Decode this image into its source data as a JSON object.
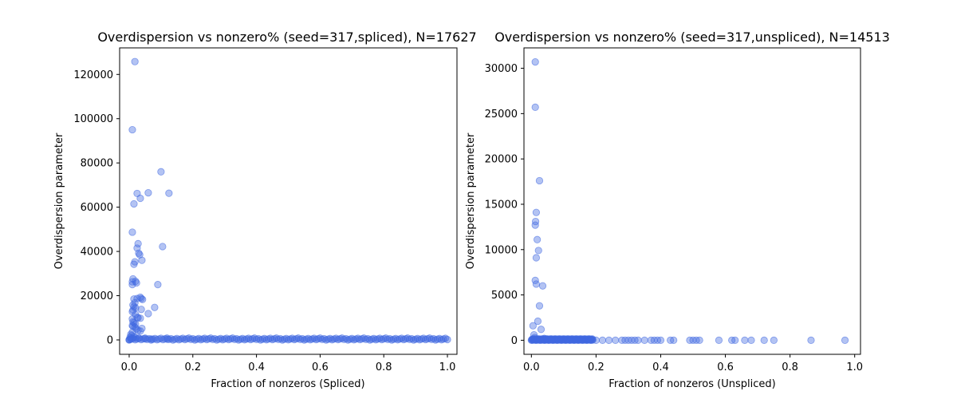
{
  "chart_data": [
    {
      "type": "scatter",
      "title": "Overdispersion vs nonzero% (seed=317,spliced), N=17627",
      "xlabel": "Fraction of nonzeros (Spliced)",
      "ylabel": "Overdispersion parameter",
      "xlim": [
        -0.03,
        1.03
      ],
      "ylim": [
        -6500,
        132000
      ],
      "xticks": [
        0.0,
        0.2,
        0.4,
        0.6,
        0.8,
        1.0
      ],
      "xtick_labels": [
        "0.0",
        "0.2",
        "0.4",
        "0.6",
        "0.8",
        "1.0"
      ],
      "yticks": [
        0,
        20000,
        40000,
        60000,
        80000,
        100000,
        120000
      ],
      "ytick_labels": [
        "0",
        "20000",
        "40000",
        "60000",
        "80000",
        "100000",
        "120000"
      ],
      "color": "#4169e1",
      "grid": false,
      "points": [
        [
          0.018,
          125800
        ],
        [
          0.01,
          95000
        ],
        [
          0.1,
          76000
        ],
        [
          0.025,
          66200
        ],
        [
          0.06,
          66500
        ],
        [
          0.125,
          66300
        ],
        [
          0.035,
          64000
        ],
        [
          0.015,
          61500
        ],
        [
          0.01,
          48700
        ],
        [
          0.028,
          43500
        ],
        [
          0.025,
          41500
        ],
        [
          0.105,
          42200
        ],
        [
          0.03,
          39200
        ],
        [
          0.033,
          38500
        ],
        [
          0.04,
          36000
        ],
        [
          0.018,
          35300
        ],
        [
          0.015,
          34200
        ],
        [
          0.012,
          27600
        ],
        [
          0.01,
          26300
        ],
        [
          0.02,
          26500
        ],
        [
          0.01,
          25000
        ],
        [
          0.09,
          25000
        ],
        [
          0.023,
          25800
        ],
        [
          0.035,
          19300
        ],
        [
          0.038,
          18700
        ],
        [
          0.042,
          18300
        ],
        [
          0.015,
          18500
        ],
        [
          0.025,
          18700
        ],
        [
          0.018,
          16800
        ],
        [
          0.012,
          15800
        ],
        [
          0.015,
          15000
        ],
        [
          0.02,
          14500
        ],
        [
          0.08,
          14700
        ],
        [
          0.038,
          13800
        ],
        [
          0.012,
          13500
        ],
        [
          0.01,
          12800
        ],
        [
          0.06,
          11900
        ],
        [
          0.02,
          11500
        ],
        [
          0.025,
          10200
        ],
        [
          0.028,
          10000
        ],
        [
          0.035,
          9800
        ],
        [
          0.01,
          9500
        ],
        [
          0.012,
          8200
        ],
        [
          0.015,
          7800
        ],
        [
          0.02,
          7200
        ],
        [
          0.01,
          6500
        ],
        [
          0.012,
          6200
        ],
        [
          0.018,
          5800
        ],
        [
          0.04,
          5200
        ],
        [
          0.022,
          5000
        ],
        [
          0.028,
          4300
        ],
        [
          0.035,
          4000
        ],
        [
          0.01,
          3500
        ],
        [
          0.005,
          2500
        ],
        [
          0.008,
          2000
        ],
        [
          0.015,
          1500
        ],
        [
          0.003,
          1200
        ],
        [
          0.005,
          700
        ],
        [
          0.002,
          300
        ],
        [
          0.0,
          100
        ],
        [
          0.01,
          600
        ],
        [
          0.02,
          1000
        ],
        [
          0.03,
          800
        ],
        [
          0.05,
          500
        ],
        [
          0.07,
          400
        ],
        [
          0.12,
          300
        ]
      ],
      "dense_band": {
        "x_from": 0.0,
        "x_to": 1.0,
        "y_from": 0,
        "y_to": 800
      }
    },
    {
      "type": "scatter",
      "title": "Overdispersion vs nonzero% (seed=317,unspliced), N=14513",
      "xlabel": "Fraction of nonzeros (Unspliced)",
      "ylabel": "Overdispersion parameter",
      "xlim": [
        -0.023,
        1.018
      ],
      "ylim": [
        -1550,
        32250
      ],
      "xticks": [
        0.0,
        0.2,
        0.4,
        0.6,
        0.8,
        1.0
      ],
      "xtick_labels": [
        "0.0",
        "0.2",
        "0.4",
        "0.6",
        "0.8",
        "1.0"
      ],
      "yticks": [
        0,
        5000,
        10000,
        15000,
        20000,
        25000,
        30000
      ],
      "ytick_labels": [
        "0",
        "5000",
        "10000",
        "15000",
        "20000",
        "25000",
        "30000"
      ],
      "color": "#4169e1",
      "grid": false,
      "points": [
        [
          0.012,
          30700
        ],
        [
          0.012,
          25700
        ],
        [
          0.025,
          17600
        ],
        [
          0.015,
          14100
        ],
        [
          0.013,
          13100
        ],
        [
          0.012,
          12700
        ],
        [
          0.018,
          11100
        ],
        [
          0.022,
          9900
        ],
        [
          0.015,
          9100
        ],
        [
          0.012,
          6600
        ],
        [
          0.015,
          6200
        ],
        [
          0.035,
          6000
        ],
        [
          0.025,
          3800
        ],
        [
          0.02,
          2100
        ],
        [
          0.005,
          1600
        ],
        [
          0.03,
          1200
        ],
        [
          0.008,
          600
        ],
        [
          0.01,
          300
        ],
        [
          0.04,
          200
        ],
        [
          0.06,
          100
        ],
        [
          0.08,
          50
        ],
        [
          0.2,
          0
        ],
        [
          0.22,
          0
        ],
        [
          0.24,
          0
        ],
        [
          0.26,
          0
        ],
        [
          0.28,
          0
        ],
        [
          0.29,
          0
        ],
        [
          0.3,
          0
        ],
        [
          0.31,
          0
        ],
        [
          0.32,
          0
        ],
        [
          0.33,
          0
        ],
        [
          0.35,
          0
        ],
        [
          0.37,
          0
        ],
        [
          0.38,
          0
        ],
        [
          0.39,
          0
        ],
        [
          0.4,
          0
        ],
        [
          0.43,
          0
        ],
        [
          0.44,
          0
        ],
        [
          0.49,
          0
        ],
        [
          0.5,
          0
        ],
        [
          0.51,
          0
        ],
        [
          0.52,
          0
        ],
        [
          0.58,
          0
        ],
        [
          0.62,
          0
        ],
        [
          0.63,
          0
        ],
        [
          0.66,
          0
        ],
        [
          0.68,
          0
        ],
        [
          0.72,
          0
        ],
        [
          0.75,
          0
        ],
        [
          0.865,
          0
        ],
        [
          0.97,
          0
        ]
      ],
      "dense_band": {
        "x_from": 0.0,
        "x_to": 0.19,
        "y_from": 0,
        "y_to": 150
      }
    }
  ]
}
